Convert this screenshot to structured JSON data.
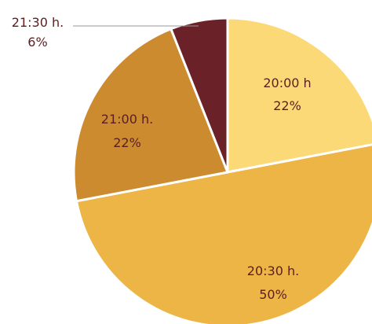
{
  "chart_data": {
    "type": "pie",
    "slices": [
      {
        "label": "20:00 h",
        "percent": 22,
        "value_label": "22%",
        "color": "#fcd977"
      },
      {
        "label": "20:30 h.",
        "percent": 50,
        "value_label": "50%",
        "color": "#ecb545"
      },
      {
        "label": "21:00 h.",
        "percent": 22,
        "value_label": "22%",
        "color": "#cc8b2f"
      },
      {
        "label": "21:30 h.",
        "percent": 6,
        "value_label": "6%",
        "color": "#6a2228"
      }
    ],
    "start_angle_deg": 0,
    "direction": "clockwise",
    "label_color": "#5c1e1e",
    "outline_color": "#ffffff"
  }
}
